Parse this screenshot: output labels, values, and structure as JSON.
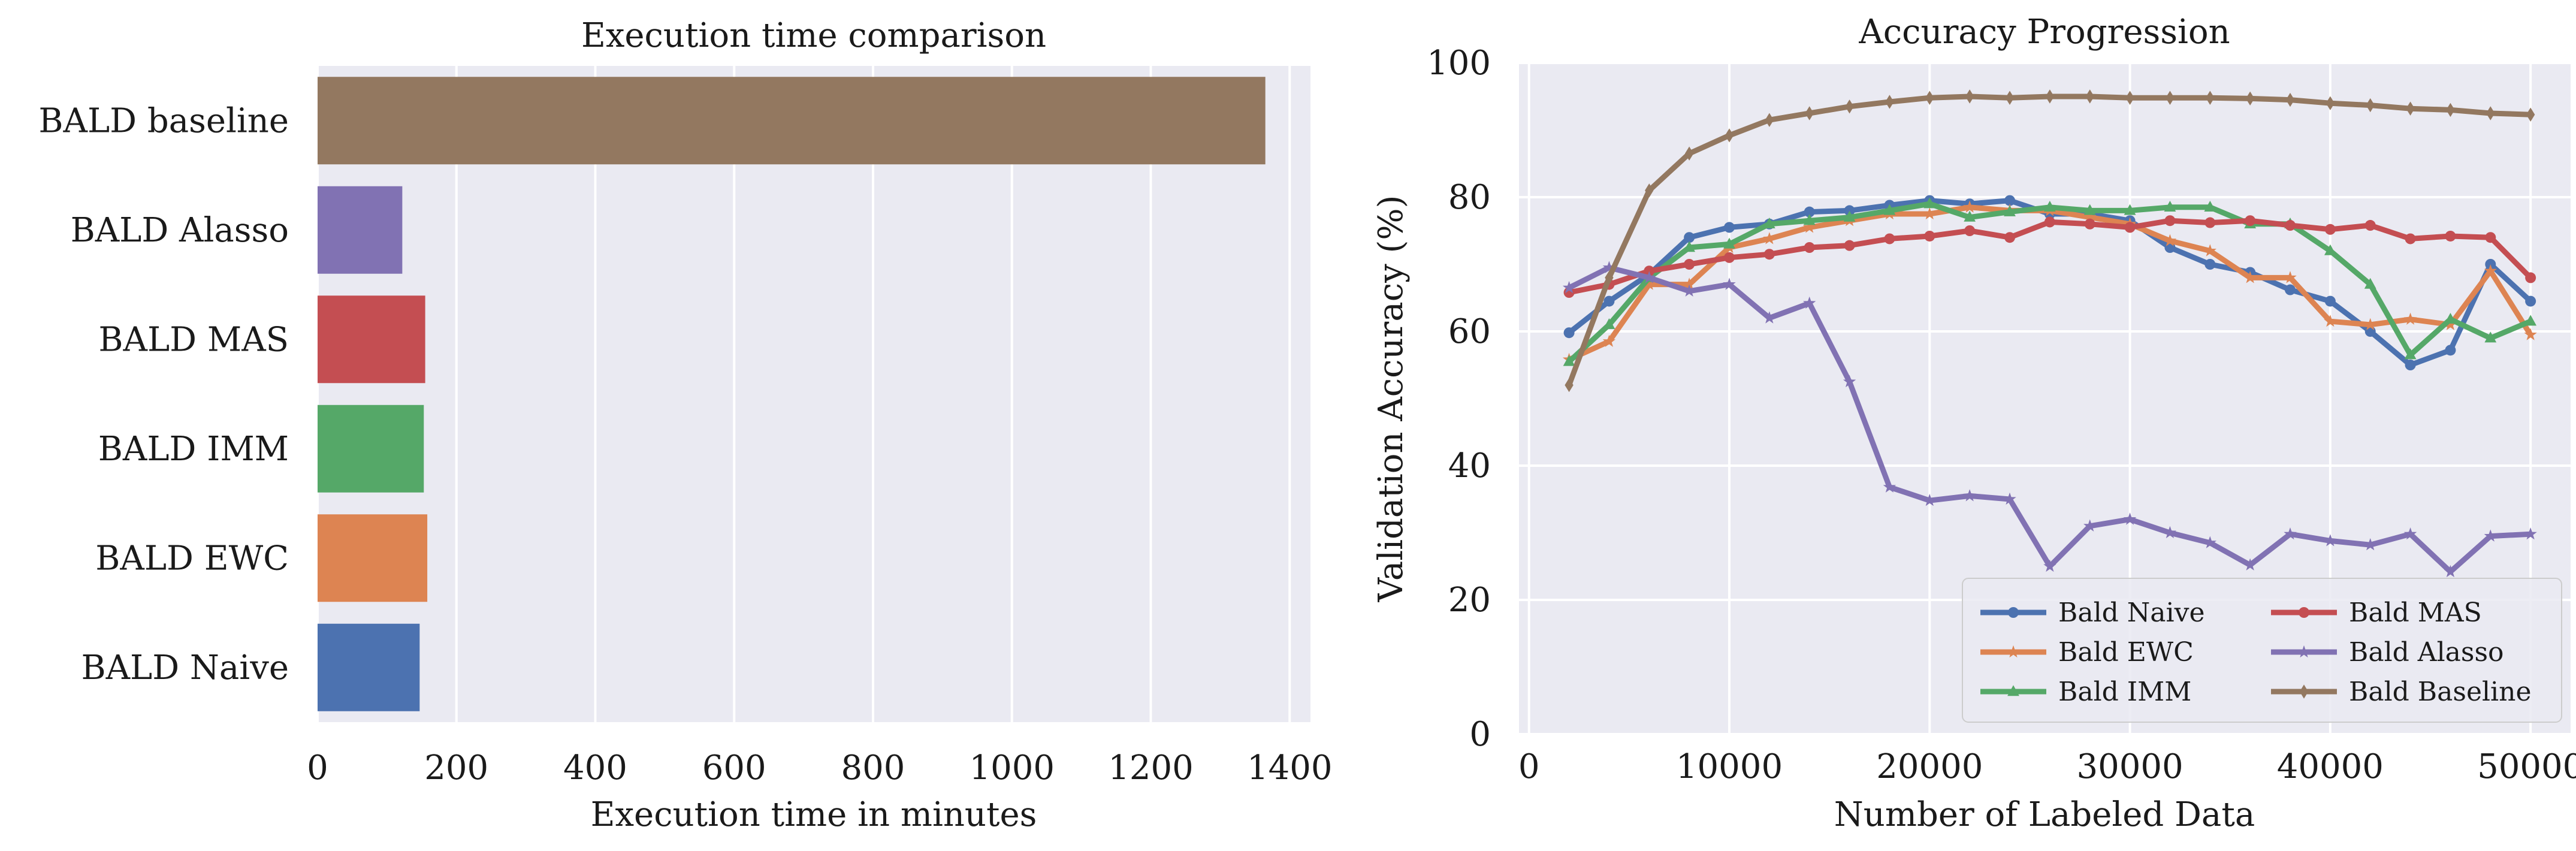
{
  "chart_data": [
    {
      "type": "bar",
      "orientation": "horizontal",
      "title": "Execution time comparison",
      "xlabel": "Execution time in minutes",
      "ylabel": "",
      "xlim": [
        0,
        1430
      ],
      "xticks": [
        0,
        200,
        400,
        600,
        800,
        1000,
        1200,
        1400
      ],
      "grid": true,
      "categories": [
        "BALD baseline",
        "BALD Alasso",
        "BALD MAS",
        "BALD IMM",
        "BALD EWC",
        "BALD Naive"
      ],
      "values": [
        1365,
        122,
        155,
        153,
        158,
        147
      ],
      "colors": [
        "#937860",
        "#8172b3",
        "#c44e52",
        "#55a868",
        "#dd8452",
        "#4c72b0"
      ]
    },
    {
      "type": "line",
      "title": "Accuracy Progression",
      "xlabel": "Number of Labeled Data",
      "ylabel": "Validation Accuracy (%)",
      "xlim": [
        -500,
        52000
      ],
      "ylim": [
        0,
        100
      ],
      "xticks": [
        0,
        10000,
        20000,
        30000,
        40000,
        50000
      ],
      "yticks": [
        0,
        20,
        40,
        60,
        80,
        100
      ],
      "grid": true,
      "legend_position": "lower-right",
      "x": [
        2000,
        4000,
        6000,
        8000,
        10000,
        12000,
        14000,
        16000,
        18000,
        20000,
        22000,
        24000,
        26000,
        28000,
        30000,
        32000,
        34000,
        36000,
        38000,
        40000,
        42000,
        44000,
        46000,
        48000,
        50000
      ],
      "series": [
        {
          "name": "Bald Naive",
          "color": "#4c72b0",
          "marker": "circle",
          "values": [
            59.8,
            64.5,
            68.5,
            74.0,
            75.5,
            76.0,
            77.8,
            78.0,
            78.8,
            79.5,
            79.0,
            79.5,
            77.5,
            77.5,
            76.5,
            72.5,
            70.0,
            68.8,
            66.2,
            64.5,
            60.0,
            55.0,
            57.2,
            70.0,
            64.5
          ]
        },
        {
          "name": "Bald EWC",
          "color": "#dd8452",
          "marker": "star",
          "values": [
            55.8,
            58.5,
            67.0,
            67.0,
            72.5,
            73.8,
            75.5,
            76.5,
            77.5,
            77.5,
            78.5,
            78.0,
            78.0,
            77.0,
            76.0,
            73.5,
            72.0,
            68.0,
            68.0,
            61.5,
            61.0,
            61.8,
            61.0,
            69.0,
            59.5
          ]
        },
        {
          "name": "Bald IMM",
          "color": "#55a868",
          "marker": "triangle",
          "values": [
            55.5,
            61.0,
            68.0,
            72.5,
            73.0,
            76.0,
            76.5,
            77.0,
            78.0,
            79.0,
            77.0,
            77.8,
            78.5,
            78.0,
            78.0,
            78.5,
            78.5,
            76.0,
            76.0,
            72.0,
            67.0,
            56.5,
            61.8,
            59.0,
            61.5
          ]
        },
        {
          "name": "Bald MAS",
          "color": "#c44e52",
          "marker": "circle",
          "values": [
            65.8,
            67.0,
            69.0,
            70.0,
            71.0,
            71.5,
            72.5,
            72.8,
            73.8,
            74.2,
            75.0,
            74.0,
            76.3,
            76.0,
            75.5,
            76.5,
            76.2,
            76.5,
            75.8,
            75.2,
            75.8,
            73.8,
            74.2,
            74.0,
            68.0
          ]
        },
        {
          "name": "Bald Alasso",
          "color": "#8172b3",
          "marker": "star",
          "values": [
            66.5,
            69.5,
            68.0,
            66.0,
            67.0,
            62.0,
            64.2,
            52.5,
            36.8,
            34.8,
            35.5,
            35.0,
            25.0,
            31.0,
            32.0,
            30.0,
            28.5,
            25.2,
            29.8,
            28.8,
            28.2,
            29.8,
            24.2,
            29.5,
            29.8
          ]
        },
        {
          "name": "Bald Baseline",
          "color": "#937860",
          "marker": "diamond",
          "values": [
            52.0,
            68.0,
            81.0,
            86.5,
            89.2,
            91.5,
            92.5,
            93.5,
            94.2,
            94.8,
            95.0,
            94.8,
            95.0,
            95.0,
            94.8,
            94.8,
            94.8,
            94.7,
            94.5,
            94.0,
            93.7,
            93.2,
            93.0,
            92.5,
            92.3
          ]
        }
      ]
    }
  ]
}
